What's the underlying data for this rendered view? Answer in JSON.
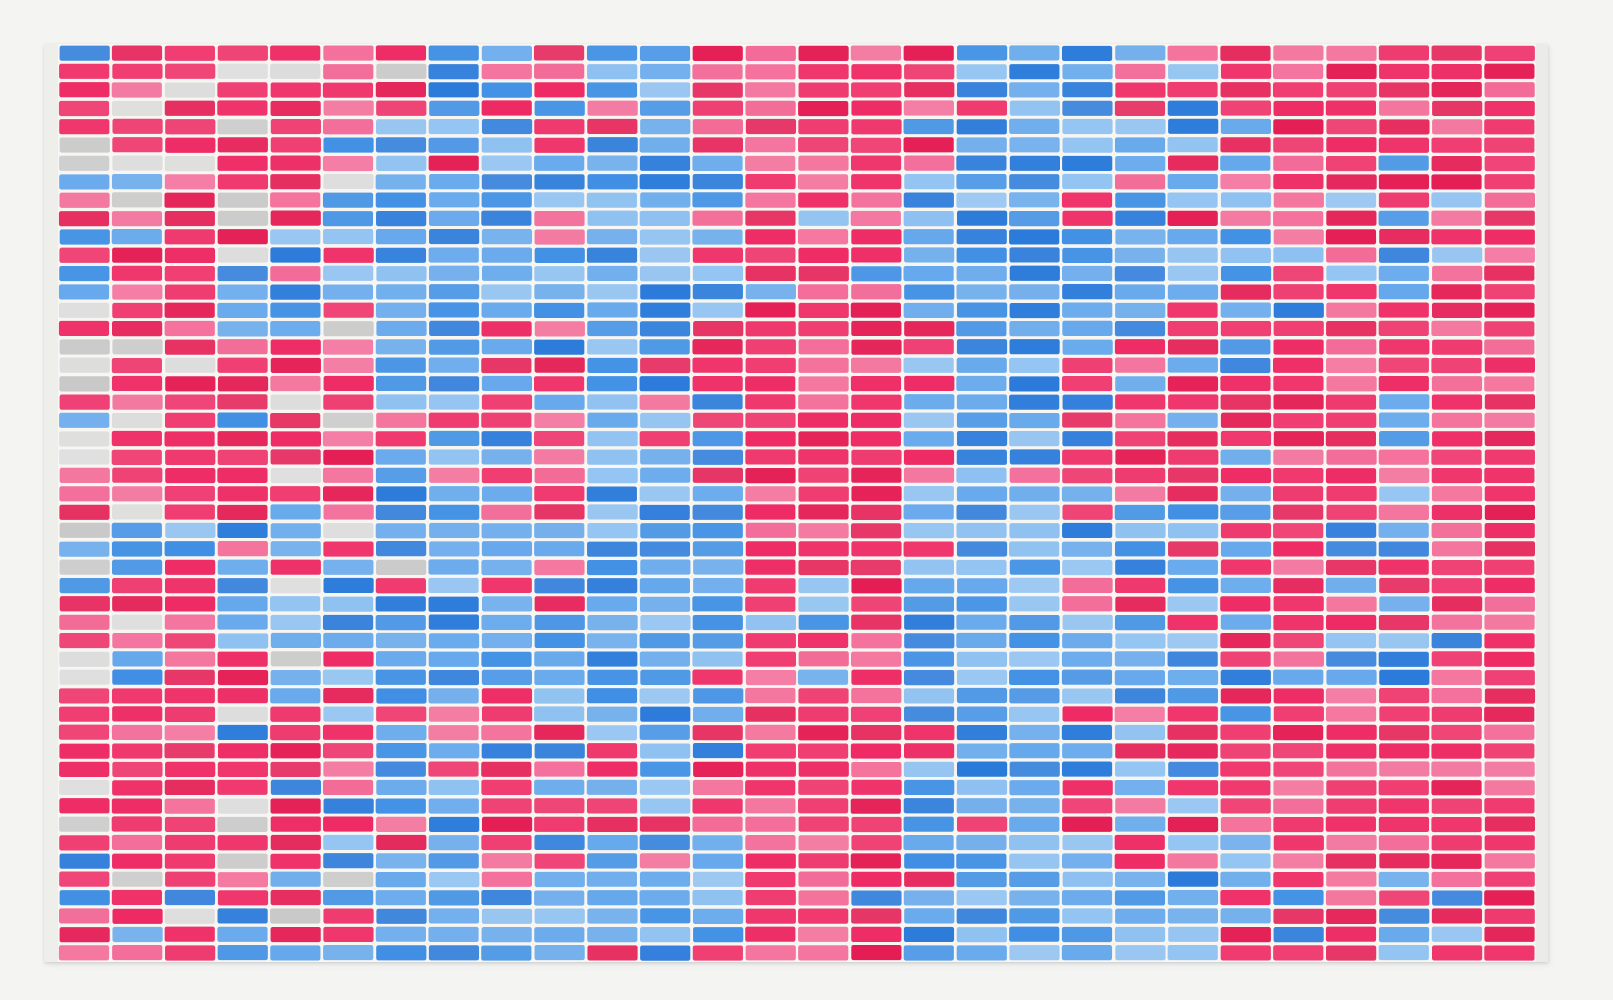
{
  "artwork": {
    "grid": {
      "columns": 28,
      "rows": 50
    },
    "palette": {
      "hot_pink": "#ee2a64",
      "deep_pink": "#e41e55",
      "soft_pink": "#f36b98",
      "sky_blue": "#65a8ec",
      "light_blue": "#8ec1f1",
      "mid_blue": "#3f8fe4",
      "deep_blue": "#2a7ada",
      "grey": "#c9c9c9",
      "light_grey": "#dcdcdc",
      "canvas_white": "#f7f6f3"
    },
    "pattern_seed": 1613
  }
}
